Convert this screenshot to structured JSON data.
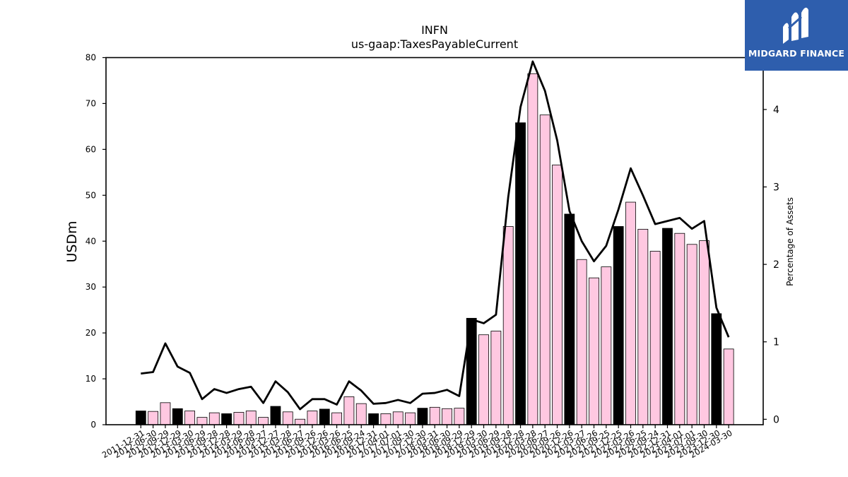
{
  "brand": {
    "name": "MIDGARD FINANCE",
    "logo_icon": "mf-logo-icon",
    "color": "#2e5ead"
  },
  "colors": {
    "bar_highlight": "#000000",
    "bar_normal": "#ffc8e1",
    "bar_edge": "#000000",
    "line": "#000000"
  },
  "chart_data": {
    "type": "bar",
    "title": "INFN",
    "subtitle": "us-gaap:TaxesPayableCurrent",
    "xlabel": "",
    "ylabel": "USDm",
    "y2label": "Percentage of Assets",
    "ylim": [
      0,
      80
    ],
    "y2lim": [
      -0.07,
      4.67
    ],
    "yticks": [
      0,
      10,
      20,
      30,
      40,
      50,
      60,
      70,
      80
    ],
    "y2ticks": [
      0,
      1,
      2,
      3,
      4
    ],
    "grid": false,
    "categories": [
      "2011-12-31",
      "2012-06-30",
      "2012-09-29",
      "2012-12-29",
      "2013-03-30",
      "2013-06-29",
      "2013-09-28",
      "2013-12-28",
      "2014-03-29",
      "2014-06-28",
      "2014-09-27",
      "2014-12-27",
      "2015-03-28",
      "2015-06-27",
      "2015-09-26",
      "2015-12-26",
      "2016-03-26",
      "2016-06-25",
      "2016-09-24",
      "2016-12-31",
      "2017-04-01",
      "2017-07-01",
      "2017-09-30",
      "2017-12-30",
      "2018-03-31",
      "2018-06-30",
      "2018-09-29",
      "2018-12-29",
      "2019-03-30",
      "2019-06-29",
      "2019-09-28",
      "2019-12-28",
      "2020-03-28",
      "2020-06-27",
      "2020-09-26",
      "2020-12-26",
      "2021-03-27",
      "2021-06-26",
      "2021-09-25",
      "2021-12-25",
      "2022-03-26",
      "2022-06-25",
      "2022-09-24",
      "2022-12-31",
      "2023-04-01",
      "2023-07-01",
      "2023-09-30",
      "2023-12-30",
      "2024-03-30"
    ],
    "series": [
      {
        "type": "bar",
        "axis": "left",
        "values": [
          3.0,
          2.9,
          4.8,
          3.5,
          3.0,
          1.6,
          2.6,
          2.4,
          2.7,
          3.0,
          1.6,
          4.0,
          2.8,
          1.2,
          3.0,
          3.4,
          2.6,
          6.1,
          4.6,
          2.4,
          2.4,
          2.8,
          2.6,
          3.6,
          3.8,
          3.5,
          3.6,
          23.2,
          19.6,
          20.4,
          43.2,
          65.8,
          76.5,
          67.5,
          56.6,
          45.9,
          36.0,
          32.0,
          34.4,
          43.2,
          48.5,
          42.6,
          37.8,
          42.8,
          41.7,
          39.3,
          40.1,
          24.2,
          16.5
        ],
        "highlight": [
          true,
          false,
          false,
          true,
          false,
          false,
          false,
          true,
          false,
          false,
          false,
          true,
          false,
          false,
          false,
          true,
          false,
          false,
          false,
          true,
          false,
          false,
          false,
          true,
          false,
          false,
          false,
          true,
          false,
          false,
          false,
          true,
          false,
          false,
          false,
          true,
          false,
          false,
          false,
          true,
          false,
          false,
          false,
          true,
          false,
          false,
          false,
          true,
          false
        ]
      },
      {
        "type": "line",
        "axis": "right",
        "values": [
          0.59,
          0.61,
          0.98,
          0.68,
          0.6,
          0.26,
          0.39,
          0.34,
          0.39,
          0.42,
          0.21,
          0.49,
          0.35,
          0.13,
          0.26,
          0.26,
          0.19,
          0.49,
          0.37,
          0.2,
          0.21,
          0.25,
          0.21,
          0.33,
          0.34,
          0.38,
          0.3,
          1.29,
          1.24,
          1.35,
          2.87,
          4.03,
          4.62,
          4.24,
          3.6,
          2.69,
          2.3,
          2.04,
          2.24,
          2.71,
          3.24,
          2.89,
          2.52,
          2.56,
          2.6,
          2.46,
          2.56,
          1.44,
          1.06
        ]
      }
    ]
  }
}
